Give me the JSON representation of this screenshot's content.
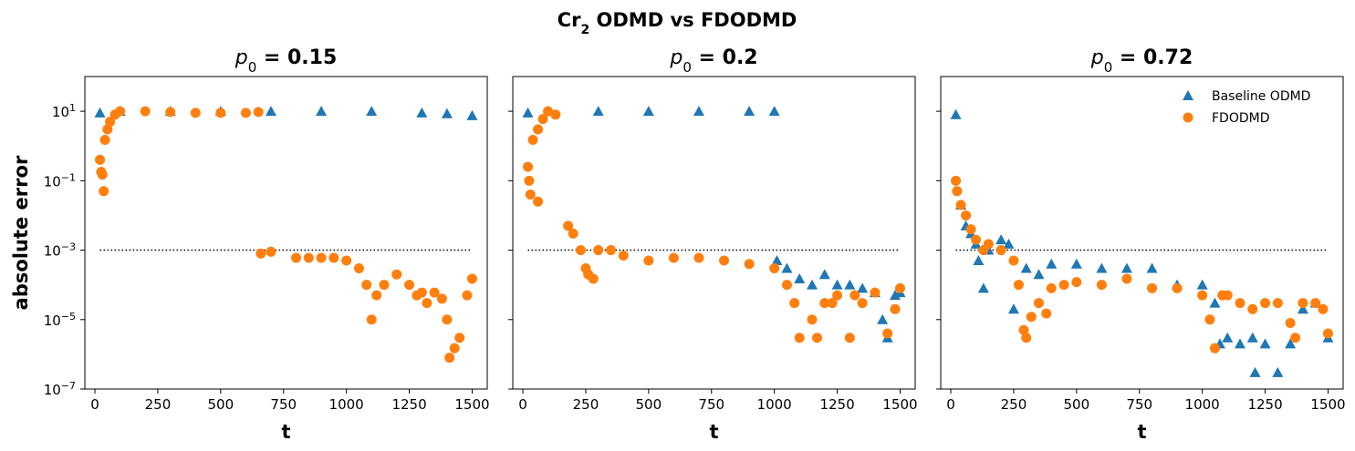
{
  "figure": {
    "suptitle_main": "Cr",
    "suptitle_sub": "2",
    "suptitle_rest": " ODMD vs FDODMD"
  },
  "chart_data": {
    "type": "scatter",
    "y_scale": "log",
    "ylim": [
      1e-07,
      100
    ],
    "xlim": [
      -40,
      1560
    ],
    "xticks": [
      0,
      250,
      500,
      750,
      1000,
      1250,
      1500
    ],
    "yticks": [
      {
        "value": 1e-07,
        "base": "10",
        "exp": "−7"
      },
      {
        "value": 1e-05,
        "base": "10",
        "exp": "−5"
      },
      {
        "value": 0.001,
        "base": "10",
        "exp": "−3"
      },
      {
        "value": 0.1,
        "base": "10",
        "exp": "−1"
      },
      {
        "value": 10,
        "base": "10",
        "exp": "1"
      }
    ],
    "ylabel": "absolute error",
    "xlabel": "t",
    "threshold": {
      "y": 0.001,
      "x": [
        20,
        1500
      ],
      "style": "dotted"
    },
    "legend": {
      "placement": "top-right",
      "panel": 2
    },
    "series_styles": [
      {
        "name": "Baseline ODMD",
        "color": "#1f77b4",
        "marker": "triangle"
      },
      {
        "name": "FDODMD",
        "color": "#ff7f0e",
        "marker": "circle"
      }
    ],
    "panels": [
      {
        "title_var": "p",
        "title_sub": "0",
        "title_val": " = 0.15",
        "baseline": [
          [
            20,
            9
          ],
          [
            100,
            10
          ],
          [
            300,
            10
          ],
          [
            500,
            10
          ],
          [
            700,
            10
          ],
          [
            900,
            10
          ],
          [
            1100,
            10
          ],
          [
            1300,
            9
          ],
          [
            1400,
            8.5
          ],
          [
            1500,
            7.5
          ]
        ],
        "fdodmd": [
          [
            20,
            0.4
          ],
          [
            25,
            0.18
          ],
          [
            30,
            0.15
          ],
          [
            35,
            0.05
          ],
          [
            40,
            1.5
          ],
          [
            50,
            3
          ],
          [
            60,
            5
          ],
          [
            80,
            8
          ],
          [
            100,
            10
          ],
          [
            200,
            10
          ],
          [
            300,
            9.5
          ],
          [
            400,
            9
          ],
          [
            500,
            9
          ],
          [
            600,
            9
          ],
          [
            650,
            9.5
          ],
          [
            660,
            0.0008
          ],
          [
            700,
            0.0009
          ],
          [
            800,
            0.0006
          ],
          [
            850,
            0.0006
          ],
          [
            900,
            0.0006
          ],
          [
            950,
            0.0006
          ],
          [
            1000,
            0.0005
          ],
          [
            1050,
            0.0003
          ],
          [
            1080,
            0.0001
          ],
          [
            1100,
            1e-05
          ],
          [
            1120,
            5e-05
          ],
          [
            1150,
            0.0001
          ],
          [
            1200,
            0.0002
          ],
          [
            1250,
            0.0001
          ],
          [
            1280,
            5e-05
          ],
          [
            1300,
            6e-05
          ],
          [
            1320,
            3e-05
          ],
          [
            1350,
            6e-05
          ],
          [
            1380,
            4e-05
          ],
          [
            1400,
            1e-05
          ],
          [
            1410,
            8e-07
          ],
          [
            1430,
            1.5e-06
          ],
          [
            1450,
            3e-06
          ],
          [
            1480,
            5e-05
          ],
          [
            1500,
            0.00015
          ]
        ]
      },
      {
        "title_var": "p",
        "title_sub": "0",
        "title_val": " = 0.2",
        "baseline": [
          [
            20,
            9
          ],
          [
            100,
            10
          ],
          [
            300,
            10
          ],
          [
            500,
            10
          ],
          [
            700,
            10
          ],
          [
            900,
            10
          ],
          [
            1000,
            10
          ],
          [
            1010,
            0.0005
          ],
          [
            1050,
            0.0003
          ],
          [
            1100,
            0.00015
          ],
          [
            1150,
            0.0001
          ],
          [
            1200,
            0.0002
          ],
          [
            1250,
            0.0001
          ],
          [
            1300,
            0.0001
          ],
          [
            1350,
            8e-05
          ],
          [
            1400,
            6e-05
          ],
          [
            1430,
            1e-05
          ],
          [
            1450,
            3e-06
          ],
          [
            1480,
            5e-05
          ],
          [
            1500,
            6e-05
          ]
        ],
        "fdodmd": [
          [
            20,
            0.25
          ],
          [
            25,
            0.1
          ],
          [
            30,
            0.04
          ],
          [
            60,
            0.025
          ],
          [
            40,
            1.5
          ],
          [
            60,
            3
          ],
          [
            80,
            6
          ],
          [
            100,
            10
          ],
          [
            130,
            8
          ],
          [
            180,
            0.005
          ],
          [
            200,
            0.003
          ],
          [
            230,
            0.001
          ],
          [
            250,
            0.0003
          ],
          [
            260,
            0.0002
          ],
          [
            280,
            0.00015
          ],
          [
            300,
            0.001
          ],
          [
            350,
            0.001
          ],
          [
            400,
            0.0007
          ],
          [
            500,
            0.0005
          ],
          [
            600,
            0.0006
          ],
          [
            700,
            0.0006
          ],
          [
            800,
            0.0005
          ],
          [
            900,
            0.0004
          ],
          [
            1000,
            0.0003
          ],
          [
            1050,
            0.0001
          ],
          [
            1080,
            3e-05
          ],
          [
            1100,
            3e-06
          ],
          [
            1150,
            1e-05
          ],
          [
            1170,
            3e-06
          ],
          [
            1200,
            3e-05
          ],
          [
            1230,
            3e-05
          ],
          [
            1250,
            5e-05
          ],
          [
            1300,
            3e-06
          ],
          [
            1320,
            5e-05
          ],
          [
            1350,
            3e-05
          ],
          [
            1400,
            6e-05
          ],
          [
            1450,
            4e-06
          ],
          [
            1480,
            2e-05
          ],
          [
            1500,
            8e-05
          ]
        ]
      },
      {
        "title_var": "p",
        "title_sub": "0",
        "title_val": " = 0.72",
        "baseline": [
          [
            20,
            8
          ],
          [
            40,
            0.02
          ],
          [
            60,
            0.005
          ],
          [
            80,
            0.003
          ],
          [
            100,
            0.0015
          ],
          [
            110,
            0.0005
          ],
          [
            130,
            8e-05
          ],
          [
            150,
            0.001
          ],
          [
            200,
            0.002
          ],
          [
            230,
            0.0015
          ],
          [
            250,
            2e-05
          ],
          [
            300,
            0.0003
          ],
          [
            350,
            0.0002
          ],
          [
            400,
            0.0004
          ],
          [
            500,
            0.0004
          ],
          [
            600,
            0.0003
          ],
          [
            700,
            0.0003
          ],
          [
            800,
            0.0003
          ],
          [
            900,
            0.0001
          ],
          [
            1000,
            0.0001
          ],
          [
            1050,
            3e-05
          ],
          [
            1070,
            2e-06
          ],
          [
            1100,
            3e-06
          ],
          [
            1150,
            2e-06
          ],
          [
            1200,
            3e-06
          ],
          [
            1210,
            3e-07
          ],
          [
            1250,
            2e-06
          ],
          [
            1300,
            3e-07
          ],
          [
            1350,
            2e-06
          ],
          [
            1400,
            2e-05
          ],
          [
            1450,
            3e-05
          ],
          [
            1500,
            3e-06
          ]
        ],
        "fdodmd": [
          [
            20,
            0.1
          ],
          [
            25,
            0.05
          ],
          [
            40,
            0.02
          ],
          [
            60,
            0.01
          ],
          [
            80,
            0.004
          ],
          [
            100,
            0.002
          ],
          [
            130,
            0.001
          ],
          [
            150,
            0.0015
          ],
          [
            200,
            0.001
          ],
          [
            250,
            0.0005
          ],
          [
            270,
            0.0001
          ],
          [
            290,
            5e-06
          ],
          [
            300,
            3e-06
          ],
          [
            320,
            1.2e-05
          ],
          [
            350,
            3e-05
          ],
          [
            380,
            1.5e-05
          ],
          [
            400,
            8e-05
          ],
          [
            450,
            0.0001
          ],
          [
            500,
            0.00012
          ],
          [
            600,
            0.0001
          ],
          [
            700,
            0.00015
          ],
          [
            800,
            8e-05
          ],
          [
            900,
            8e-05
          ],
          [
            1000,
            5e-05
          ],
          [
            1030,
            1e-05
          ],
          [
            1050,
            1.5e-06
          ],
          [
            1080,
            5e-05
          ],
          [
            1100,
            5e-05
          ],
          [
            1150,
            3e-05
          ],
          [
            1200,
            2e-05
          ],
          [
            1250,
            3e-05
          ],
          [
            1300,
            3e-05
          ],
          [
            1350,
            8e-06
          ],
          [
            1370,
            3e-06
          ],
          [
            1400,
            3e-05
          ],
          [
            1450,
            3e-05
          ],
          [
            1480,
            2e-05
          ],
          [
            1500,
            4e-06
          ]
        ]
      }
    ]
  }
}
